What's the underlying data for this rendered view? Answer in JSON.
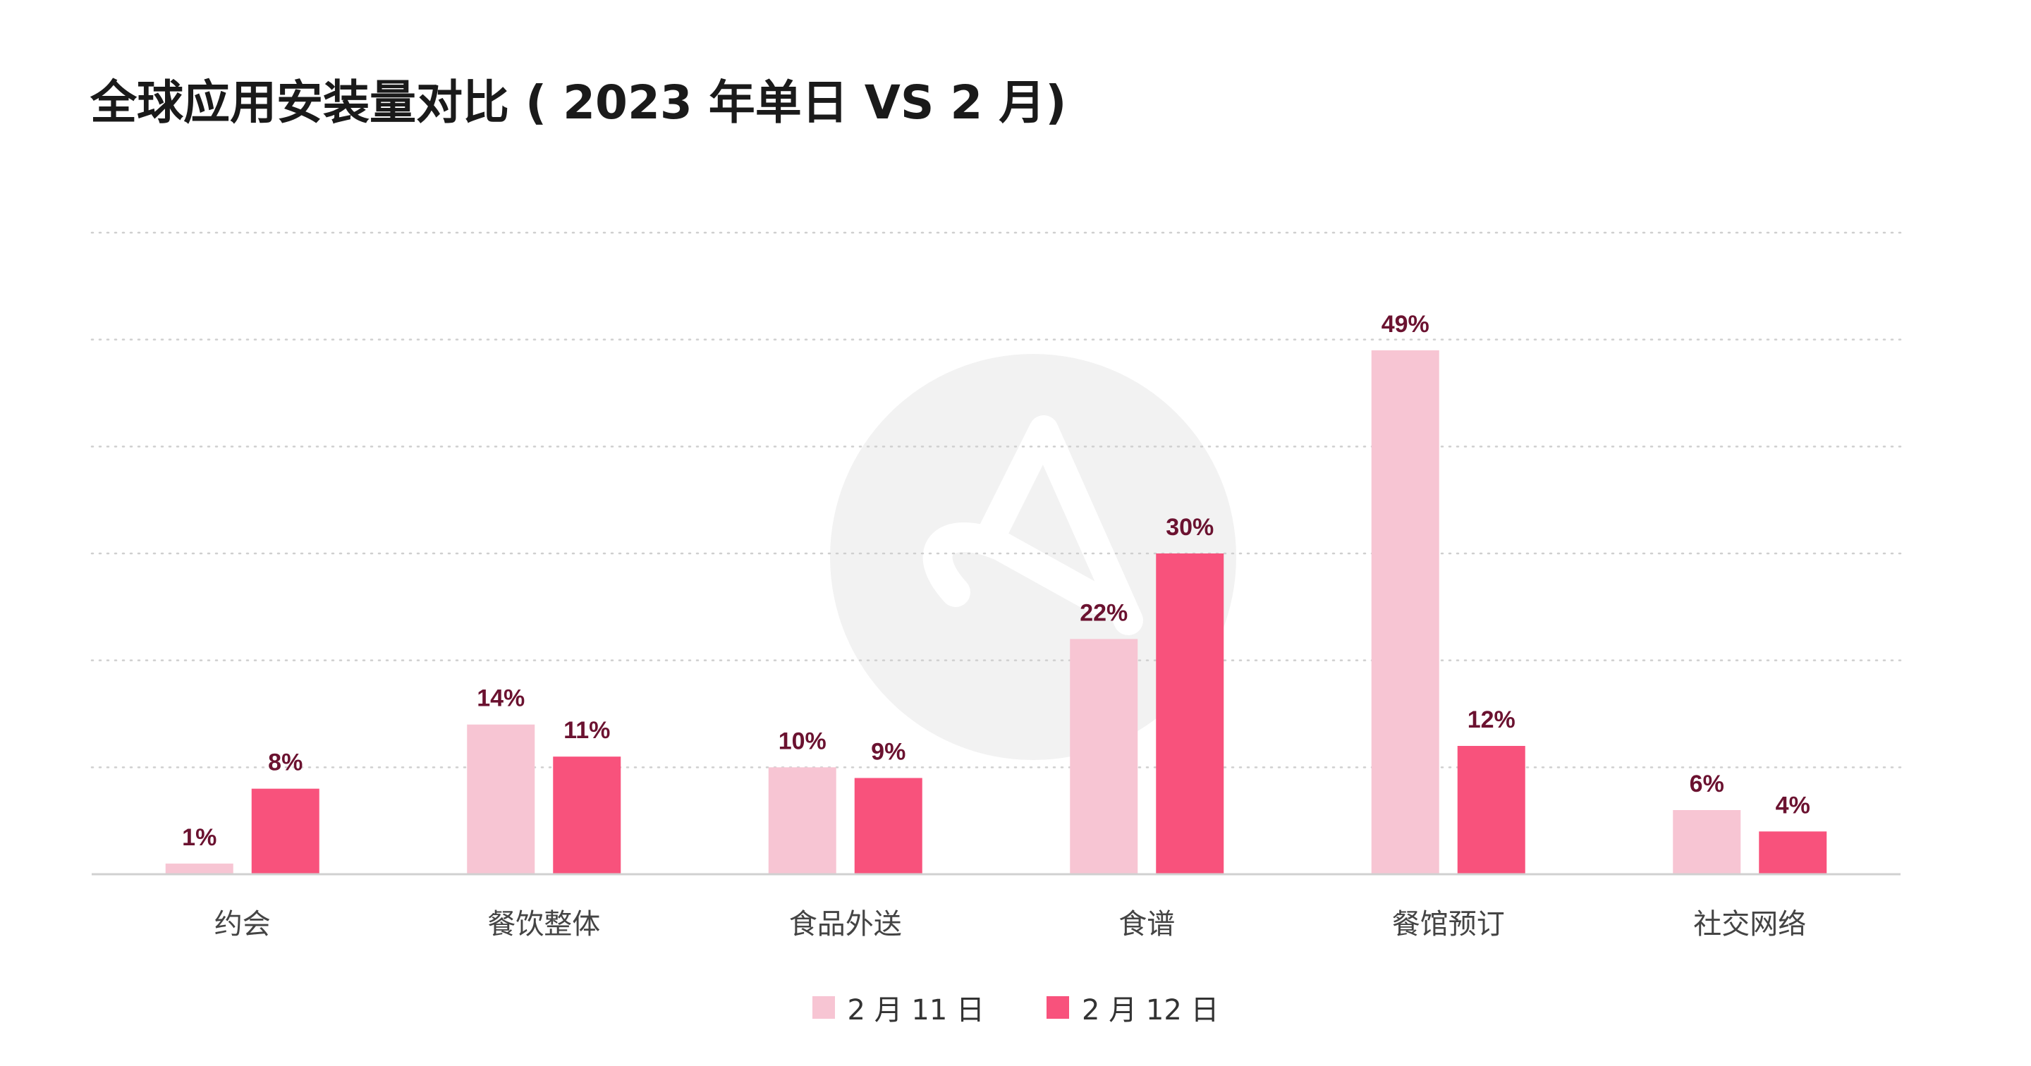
{
  "chart_data": {
    "type": "bar",
    "title": "全球应用安装量对比 ( 2023 年单日 VS 2 月)",
    "categories": [
      "约会",
      "餐饮整体",
      "食品外送",
      "食谱",
      "餐馆预订",
      "社交网络"
    ],
    "series": [
      {
        "name": "2 月 11 日",
        "color": "#f7c5d3",
        "values": [
          1,
          14,
          10,
          22,
          49,
          6
        ]
      },
      {
        "name": "2 月 12 日",
        "color": "#f8527c",
        "values": [
          8,
          11,
          9,
          30,
          12,
          4
        ]
      }
    ],
    "value_suffix": "%",
    "ylim": [
      0,
      60
    ],
    "grid": true,
    "legend_position": "bottom-center",
    "data_label_color": "#6b1230",
    "watermark": "logo"
  }
}
